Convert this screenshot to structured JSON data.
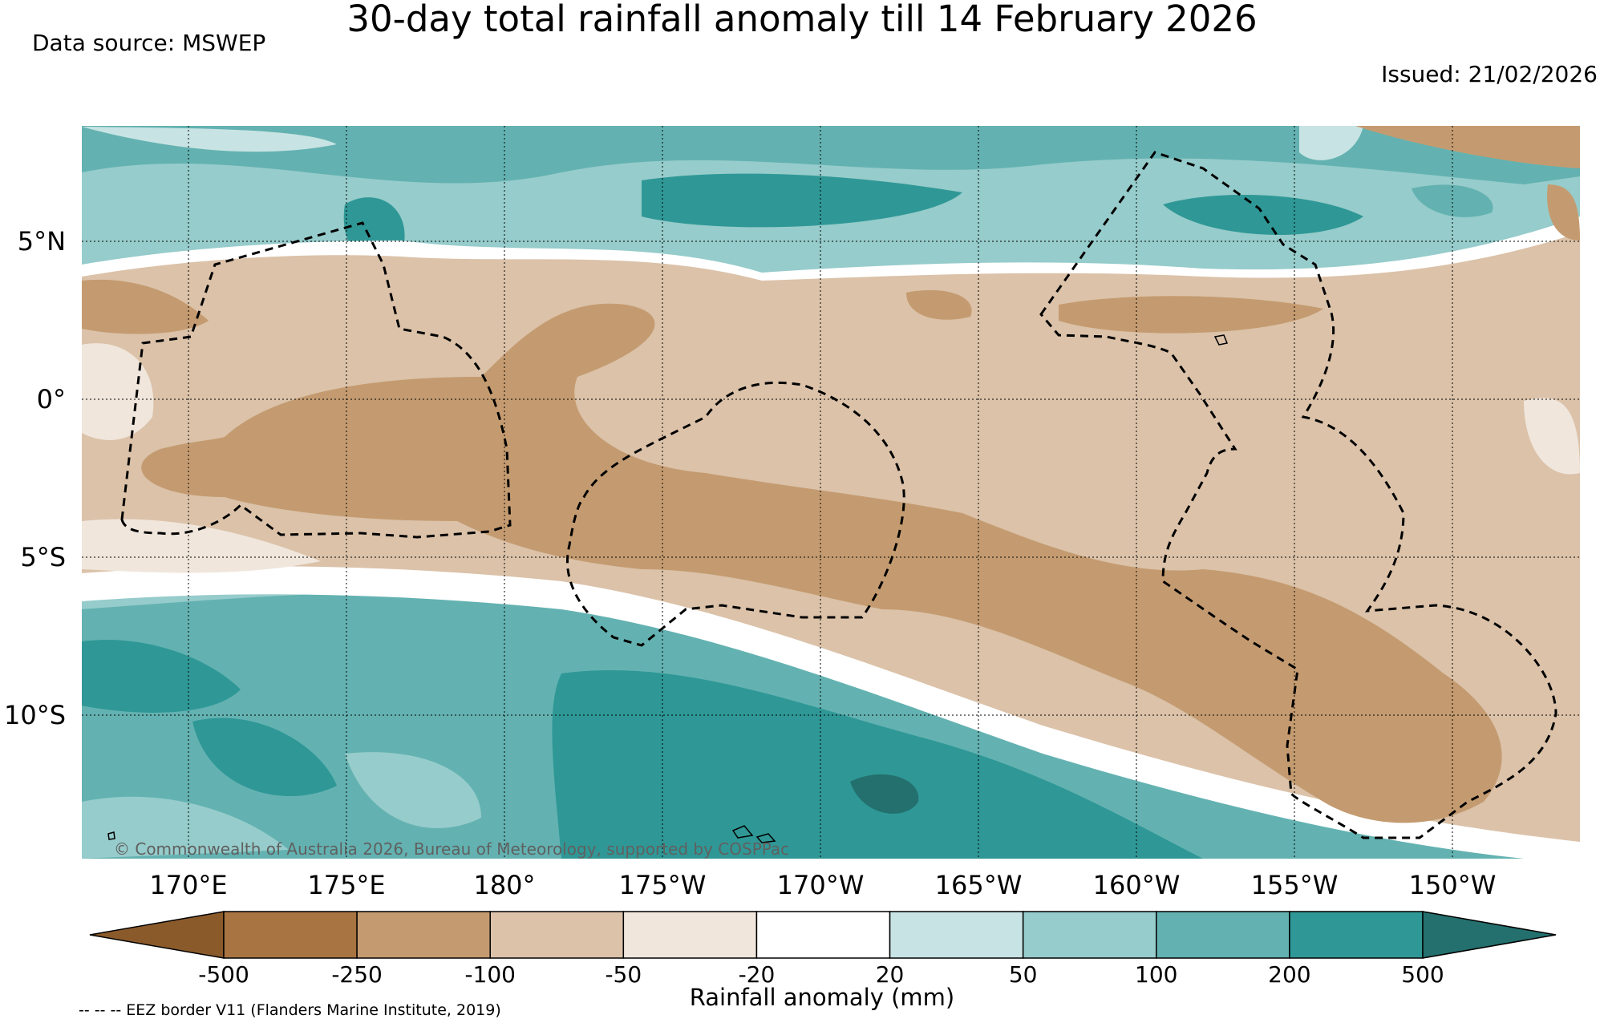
{
  "title": "30-day total rainfall anomaly till 14 February 2026",
  "data_source": "Data source: MSWEP",
  "issued": "Issued: 21/02/2026",
  "copyright": "© Commonwealth of Australia 2026, Bureau of Meteorology, supported by COSPPac",
  "footnote": "-- -- -- EEZ border V11 (Flanders Marine Institute, 2019)",
  "map": {
    "lon_range": [
      166.7,
      -147.9
    ],
    "lat_range": [
      -14.6,
      8.6
    ],
    "lat_ticks": [
      "5°N",
      "0°",
      "5°S",
      "10°S"
    ],
    "lon_ticks": [
      "170°E",
      "175°E",
      "180°",
      "175°W",
      "170°W",
      "165°W",
      "160°W",
      "155°W",
      "150°W"
    ],
    "grid": "dotted"
  },
  "colorbar": {
    "title": "Rainfall anomaly (mm)",
    "boundaries": [
      "-500",
      "-250",
      "-100",
      "-50",
      "-20",
      "20",
      "50",
      "100",
      "200",
      "500"
    ],
    "colors": [
      "#8b5a2b",
      "#a87442",
      "#c49b70",
      "#dbc2a9",
      "#f0e6dc",
      "#ffffff",
      "#c8e3e3",
      "#96cccb",
      "#63b2b1",
      "#2f9896",
      "#23706e"
    ]
  }
}
